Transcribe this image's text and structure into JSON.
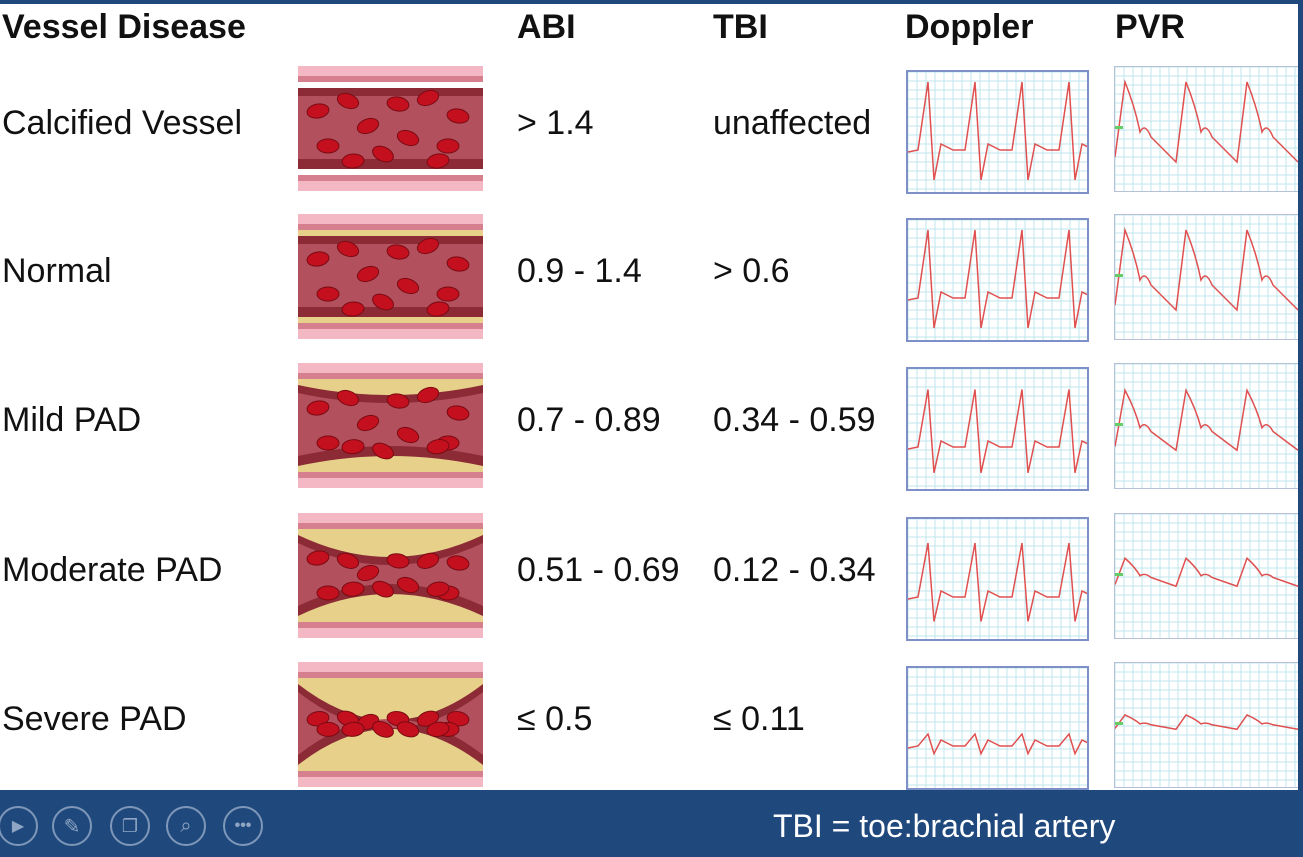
{
  "headers": {
    "disease": "Vessel Disease",
    "abi": "ABI",
    "tbi": "TBI",
    "doppler": "Doppler",
    "pvr": "PVR"
  },
  "rows": [
    {
      "name": "Calcified Vessel",
      "abi": "> 1.4",
      "tbi": "unaffected"
    },
    {
      "name": "Normal",
      "abi": "0.9 - 1.4",
      "tbi": "> 0.6"
    },
    {
      "name": "Mild PAD",
      "abi": "0.7 - 0.89",
      "tbi": "0.34 - 0.59"
    },
    {
      "name": "Moderate PAD",
      "abi": "0.51 - 0.69",
      "tbi": "0.12 - 0.34"
    },
    {
      "name": "Severe PAD",
      "abi": "≤ 0.5",
      "tbi": "≤ 0.11"
    }
  ],
  "caption": "TBI = toe:brachial artery",
  "toolbar": [
    "play-icon",
    "pen-icon",
    "slides-icon",
    "zoom-icon",
    "more-icon"
  ],
  "colors": {
    "bar": "#1f497d",
    "wave": "#e05050",
    "grid": "#bfe6ec"
  }
}
